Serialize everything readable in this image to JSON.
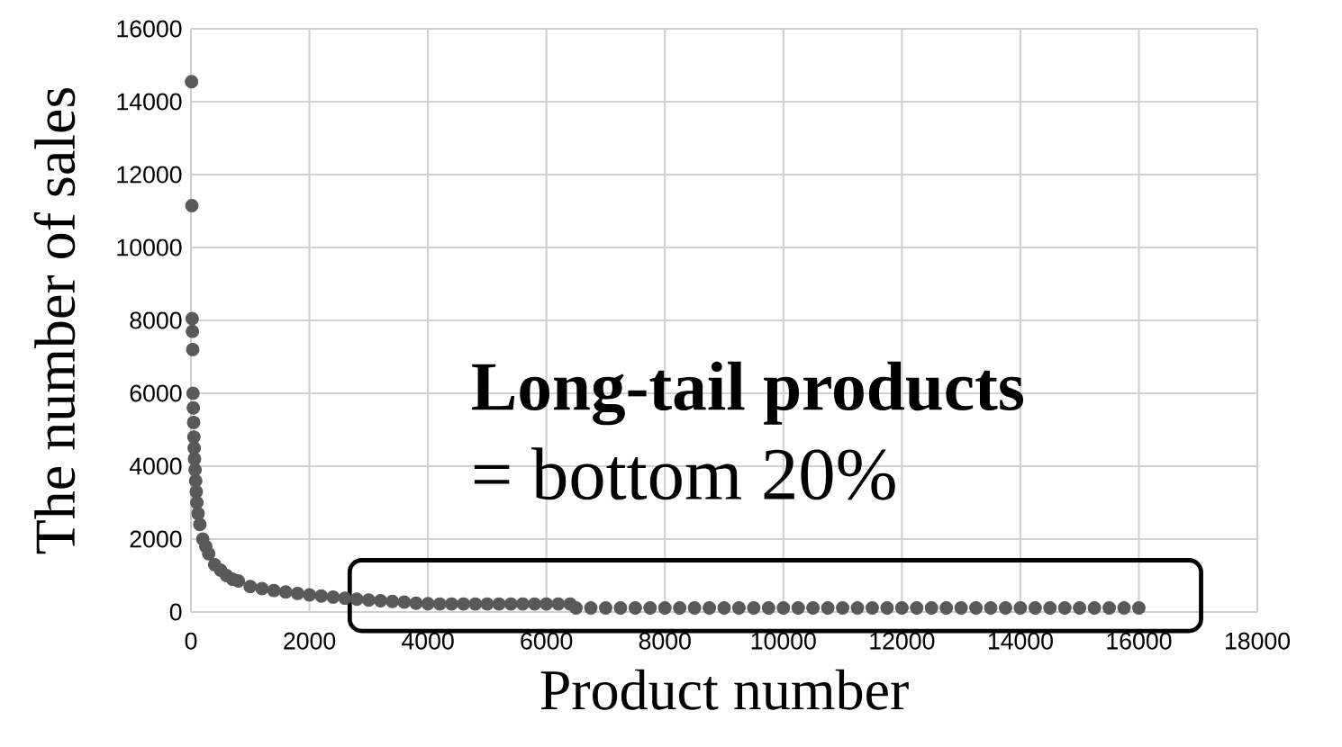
{
  "chart_data": {
    "type": "scatter",
    "xlabel": "Product number",
    "ylabel": "The number of sales",
    "annotations": [
      "Long-tail products",
      "= bottom 20%"
    ],
    "x": [
      10,
      15,
      20,
      25,
      30,
      35,
      40,
      45,
      50,
      55,
      60,
      70,
      80,
      90,
      100,
      120,
      150,
      200,
      250,
      300,
      400,
      500,
      600,
      700,
      800,
      1000,
      1200,
      1400,
      1600,
      1800,
      2000,
      2200,
      2400,
      2600,
      2800,
      3000,
      3200,
      3400,
      3600,
      3800,
      4000,
      4200,
      4400,
      4600,
      4800,
      5000,
      5200,
      5400,
      5600,
      5800,
      6000,
      6200,
      6400,
      6500,
      6750,
      7000,
      7250,
      7500,
      7750,
      8000,
      8250,
      8500,
      8750,
      9000,
      9250,
      9500,
      9750,
      10000,
      10250,
      10500,
      10750,
      11000,
      11250,
      11500,
      11750,
      12000,
      12250,
      12500,
      12750,
      13000,
      13250,
      13500,
      13750,
      14000,
      14250,
      14500,
      14750,
      15000,
      15250,
      15500,
      15750,
      16000
    ],
    "values": [
      14550,
      11150,
      8050,
      7700,
      7200,
      6000,
      5600,
      5200,
      4800,
      4500,
      4200,
      3900,
      3600,
      3300,
      3000,
      2700,
      2400,
      2000,
      1800,
      1600,
      1300,
      1150,
      1000,
      900,
      850,
      700,
      640,
      590,
      550,
      510,
      470,
      440,
      410,
      380,
      350,
      330,
      310,
      290,
      270,
      240,
      230,
      220,
      220,
      220,
      220,
      220,
      220,
      220,
      220,
      220,
      220,
      220,
      220,
      110,
      110,
      110,
      110,
      110,
      110,
      110,
      110,
      110,
      110,
      110,
      110,
      110,
      110,
      110,
      110,
      110,
      110,
      110,
      110,
      110,
      110,
      110,
      110,
      110,
      110,
      110,
      110,
      110,
      110,
      110,
      110,
      110,
      110,
      110,
      110,
      110,
      110,
      110
    ],
    "color": "#595959",
    "marker": "circle",
    "xlim": [
      0,
      18000
    ],
    "xticks": [
      0,
      2000,
      4000,
      6000,
      8000,
      10000,
      12000,
      14000,
      16000,
      18000
    ],
    "ylim": [
      0,
      16000
    ],
    "yticks": [
      0,
      2000,
      4000,
      6000,
      8000,
      10000,
      12000,
      14000,
      16000
    ],
    "grid": true
  }
}
